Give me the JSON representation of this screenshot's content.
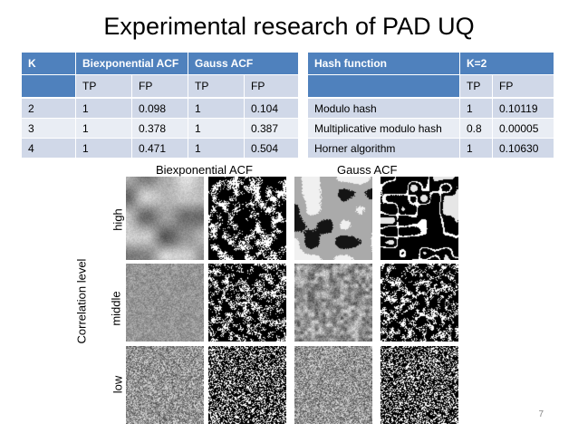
{
  "title": "Experimental research of PAD UQ",
  "table_left": {
    "headers": [
      "K",
      "Biexponential ACF",
      "Gauss ACF"
    ],
    "subheaders": [
      "TP",
      "FP",
      "TP",
      "FP"
    ],
    "rows": [
      [
        "2",
        "1",
        "0.098",
        "1",
        "0.104"
      ],
      [
        "3",
        "1",
        "0.378",
        "1",
        "0.387"
      ],
      [
        "4",
        "1",
        "0.471",
        "1",
        "0.504"
      ]
    ]
  },
  "table_right": {
    "headers": [
      "Hash function",
      "K=2"
    ],
    "subheaders": [
      "TP",
      "FP"
    ],
    "rows": [
      [
        "Modulo hash",
        "1",
        "0.10119"
      ],
      [
        "Multiplicative modulo hash",
        "0.8",
        "0.00005"
      ],
      [
        "Horner algorithm",
        "1",
        "0.10630"
      ]
    ]
  },
  "figure": {
    "col_label_biexp": "Biexponential ACF",
    "col_label_gauss": "Gauss ACF",
    "axis_label": "Correlation level",
    "row_labels": [
      "high",
      "middle",
      "low"
    ]
  },
  "page_number": "7"
}
